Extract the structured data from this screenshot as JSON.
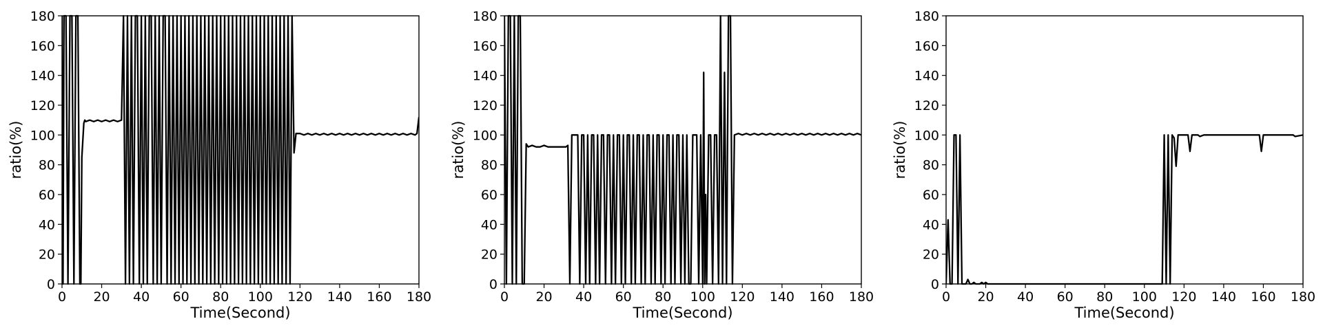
{
  "chart_data": [
    {
      "type": "line",
      "title": "",
      "xlabel": "Time(Second)",
      "ylabel": "ratio(%)",
      "xlim": [
        0,
        180
      ],
      "ylim": [
        0,
        180
      ],
      "xticks": [
        "0",
        "20",
        "40",
        "60",
        "80",
        "100",
        "120",
        "140",
        "160",
        "180"
      ],
      "yticks": [
        "0",
        "20",
        "40",
        "60",
        "80",
        "100",
        "120",
        "140",
        "160",
        "180"
      ],
      "grid": false,
      "series": [
        {
          "color": "#000000",
          "x": [
            0,
            0.5,
            1,
            2,
            3,
            4,
            5,
            6,
            7,
            8,
            9,
            9.5,
            10,
            11,
            11.5,
            12,
            14,
            16,
            18,
            20,
            22,
            24,
            26,
            28,
            30,
            31,
            32,
            33,
            34,
            35,
            36,
            37,
            38,
            39,
            40,
            41,
            42,
            43,
            44,
            45,
            46,
            47,
            48,
            49,
            50,
            51,
            52,
            53,
            54,
            55,
            56,
            57,
            58,
            59,
            60,
            61,
            62,
            63,
            64,
            65,
            66,
            67,
            68,
            69,
            70,
            71,
            72,
            73,
            74,
            75,
            76,
            77,
            78,
            79,
            80,
            81,
            82,
            83,
            84,
            85,
            86,
            87,
            88,
            89,
            90,
            91,
            92,
            93,
            94,
            95,
            96,
            97,
            98,
            99,
            100,
            101,
            102,
            103,
            104,
            105,
            106,
            107,
            108,
            109,
            110,
            111,
            112,
            113,
            114,
            115,
            116,
            117,
            118,
            120,
            122,
            124,
            126,
            128,
            130,
            132,
            134,
            136,
            138,
            140,
            142,
            144,
            146,
            148,
            150,
            152,
            154,
            156,
            158,
            160,
            162,
            164,
            166,
            168,
            170,
            172,
            174,
            176,
            178,
            179,
            180
          ],
          "y": [
            180,
            0,
            180,
            180,
            0,
            180,
            180,
            0,
            180,
            180,
            0,
            0,
            85,
            108,
            110,
            109,
            110,
            109,
            110,
            109,
            110,
            109,
            110,
            109,
            110,
            180,
            0,
            180,
            0,
            180,
            0,
            180,
            180,
            0,
            180,
            0,
            180,
            0,
            180,
            180,
            0,
            180,
            0,
            180,
            0,
            180,
            180,
            0,
            180,
            0,
            180,
            0,
            180,
            0,
            180,
            0,
            180,
            0,
            180,
            0,
            180,
            0,
            180,
            0,
            180,
            0,
            180,
            0,
            180,
            0,
            180,
            0,
            180,
            0,
            180,
            0,
            180,
            0,
            180,
            0,
            180,
            0,
            180,
            0,
            180,
            0,
            180,
            0,
            180,
            0,
            180,
            0,
            180,
            0,
            180,
            0,
            180,
            0,
            180,
            0,
            180,
            0,
            180,
            0,
            180,
            0,
            180,
            0,
            180,
            0,
            180,
            88,
            101,
            101,
            100,
            101,
            100,
            101,
            100,
            101,
            100,
            101,
            100,
            101,
            100,
            101,
            100,
            101,
            100,
            101,
            100,
            101,
            100,
            101,
            100,
            101,
            100,
            101,
            100,
            101,
            100,
            101,
            100,
            101,
            112
          ]
        }
      ]
    },
    {
      "type": "line",
      "title": "",
      "xlabel": "Time(Second)",
      "ylabel": "ratio(%)",
      "xlim": [
        0,
        180
      ],
      "ylim": [
        0,
        180
      ],
      "xticks": [
        "0",
        "20",
        "40",
        "60",
        "80",
        "100",
        "120",
        "140",
        "160",
        "180"
      ],
      "yticks": [
        "0",
        "20",
        "40",
        "60",
        "80",
        "100",
        "120",
        "140",
        "160",
        "180"
      ],
      "grid": false,
      "series": [
        {
          "color": "#000000",
          "x": [
            0,
            1,
            2,
            3,
            4,
            5,
            6,
            7,
            8,
            9,
            10,
            11,
            12,
            14,
            16,
            18,
            20,
            22,
            24,
            26,
            28,
            30,
            31,
            32,
            33,
            34,
            35,
            37,
            38,
            39,
            40,
            41,
            42,
            43,
            44,
            45,
            46,
            47,
            48,
            49,
            50,
            51,
            52,
            53,
            54,
            55,
            56,
            57,
            58,
            59,
            60,
            61,
            62,
            63,
            64,
            65,
            66,
            67,
            68,
            69,
            70,
            71,
            72,
            73,
            74,
            75,
            76,
            77,
            78,
            79,
            80,
            81,
            82,
            83,
            84,
            85,
            86,
            87,
            88,
            89,
            90,
            91,
            92,
            93,
            94,
            95,
            96,
            97,
            98,
            99,
            100,
            100.5,
            101,
            101.5,
            102,
            103,
            104,
            105,
            106,
            107,
            108,
            109,
            110,
            111,
            112,
            113,
            114,
            115,
            116,
            118,
            120,
            122,
            124,
            126,
            128,
            130,
            132,
            134,
            136,
            138,
            140,
            142,
            144,
            146,
            148,
            150,
            152,
            154,
            156,
            158,
            160,
            162,
            164,
            166,
            168,
            170,
            172,
            174,
            176,
            178,
            180
          ],
          "y": [
            180,
            0,
            180,
            180,
            0,
            180,
            0,
            180,
            180,
            0,
            0,
            94,
            92,
            93,
            92,
            92,
            93,
            92,
            92,
            92,
            92,
            92,
            92,
            93,
            0,
            100,
            100,
            100,
            0,
            100,
            100,
            0,
            100,
            0,
            100,
            100,
            0,
            100,
            0,
            100,
            100,
            0,
            100,
            100,
            0,
            100,
            0,
            100,
            100,
            0,
            100,
            0,
            100,
            100,
            0,
            100,
            0,
            100,
            100,
            0,
            100,
            0,
            100,
            100,
            0,
            100,
            0,
            100,
            100,
            0,
            100,
            0,
            100,
            100,
            0,
            100,
            0,
            100,
            100,
            0,
            100,
            0,
            100,
            0,
            0,
            100,
            100,
            100,
            0,
            100,
            0,
            142,
            0,
            60,
            0,
            100,
            100,
            0,
            100,
            100,
            0,
            180,
            0,
            142,
            0,
            180,
            180,
            0,
            100,
            101,
            100,
            101,
            100,
            101,
            100,
            101,
            100,
            101,
            100,
            101,
            100,
            101,
            100,
            101,
            100,
            101,
            100,
            101,
            100,
            101,
            100,
            101,
            100,
            101,
            100,
            101,
            100,
            101,
            100,
            101,
            100
          ]
        }
      ]
    },
    {
      "type": "line",
      "title": "",
      "xlabel": "Time(Second)",
      "ylabel": "ratio(%)",
      "xlim": [
        0,
        180
      ],
      "ylim": [
        0,
        180
      ],
      "xticks": [
        "0",
        "20",
        "40",
        "60",
        "80",
        "100",
        "120",
        "140",
        "160",
        "180"
      ],
      "yticks": [
        "0",
        "20",
        "40",
        "60",
        "80",
        "100",
        "120",
        "140",
        "160",
        "180"
      ],
      "grid": false,
      "series": [
        {
          "color": "#000000",
          "x": [
            0,
            1,
            2,
            3,
            4,
            5,
            6,
            7,
            8,
            9,
            10,
            11,
            12,
            13,
            14,
            15,
            16,
            17,
            18,
            19,
            20,
            21,
            22,
            24,
            30,
            40,
            50,
            60,
            70,
            80,
            90,
            100,
            109,
            110,
            111,
            112,
            113,
            114,
            115,
            116,
            117,
            118,
            119,
            120,
            121,
            122,
            123,
            124,
            125,
            126,
            127,
            128,
            130,
            140,
            150,
            157,
            158,
            159,
            160,
            161,
            162,
            170,
            175,
            176,
            180
          ],
          "y": [
            0,
            43,
            0,
            0,
            100,
            100,
            0,
            100,
            0,
            0,
            0,
            3,
            0,
            0,
            1,
            0,
            0,
            0,
            1,
            0,
            1,
            0,
            0,
            0,
            0,
            0,
            0,
            0,
            0,
            0,
            0,
            0,
            0,
            100,
            0,
            100,
            0,
            100,
            98,
            79,
            100,
            100,
            100,
            100,
            100,
            100,
            89,
            100,
            100,
            100,
            100,
            99,
            100,
            100,
            100,
            100,
            100,
            89,
            100,
            100,
            100,
            100,
            100,
            99,
            100
          ]
        }
      ]
    }
  ]
}
